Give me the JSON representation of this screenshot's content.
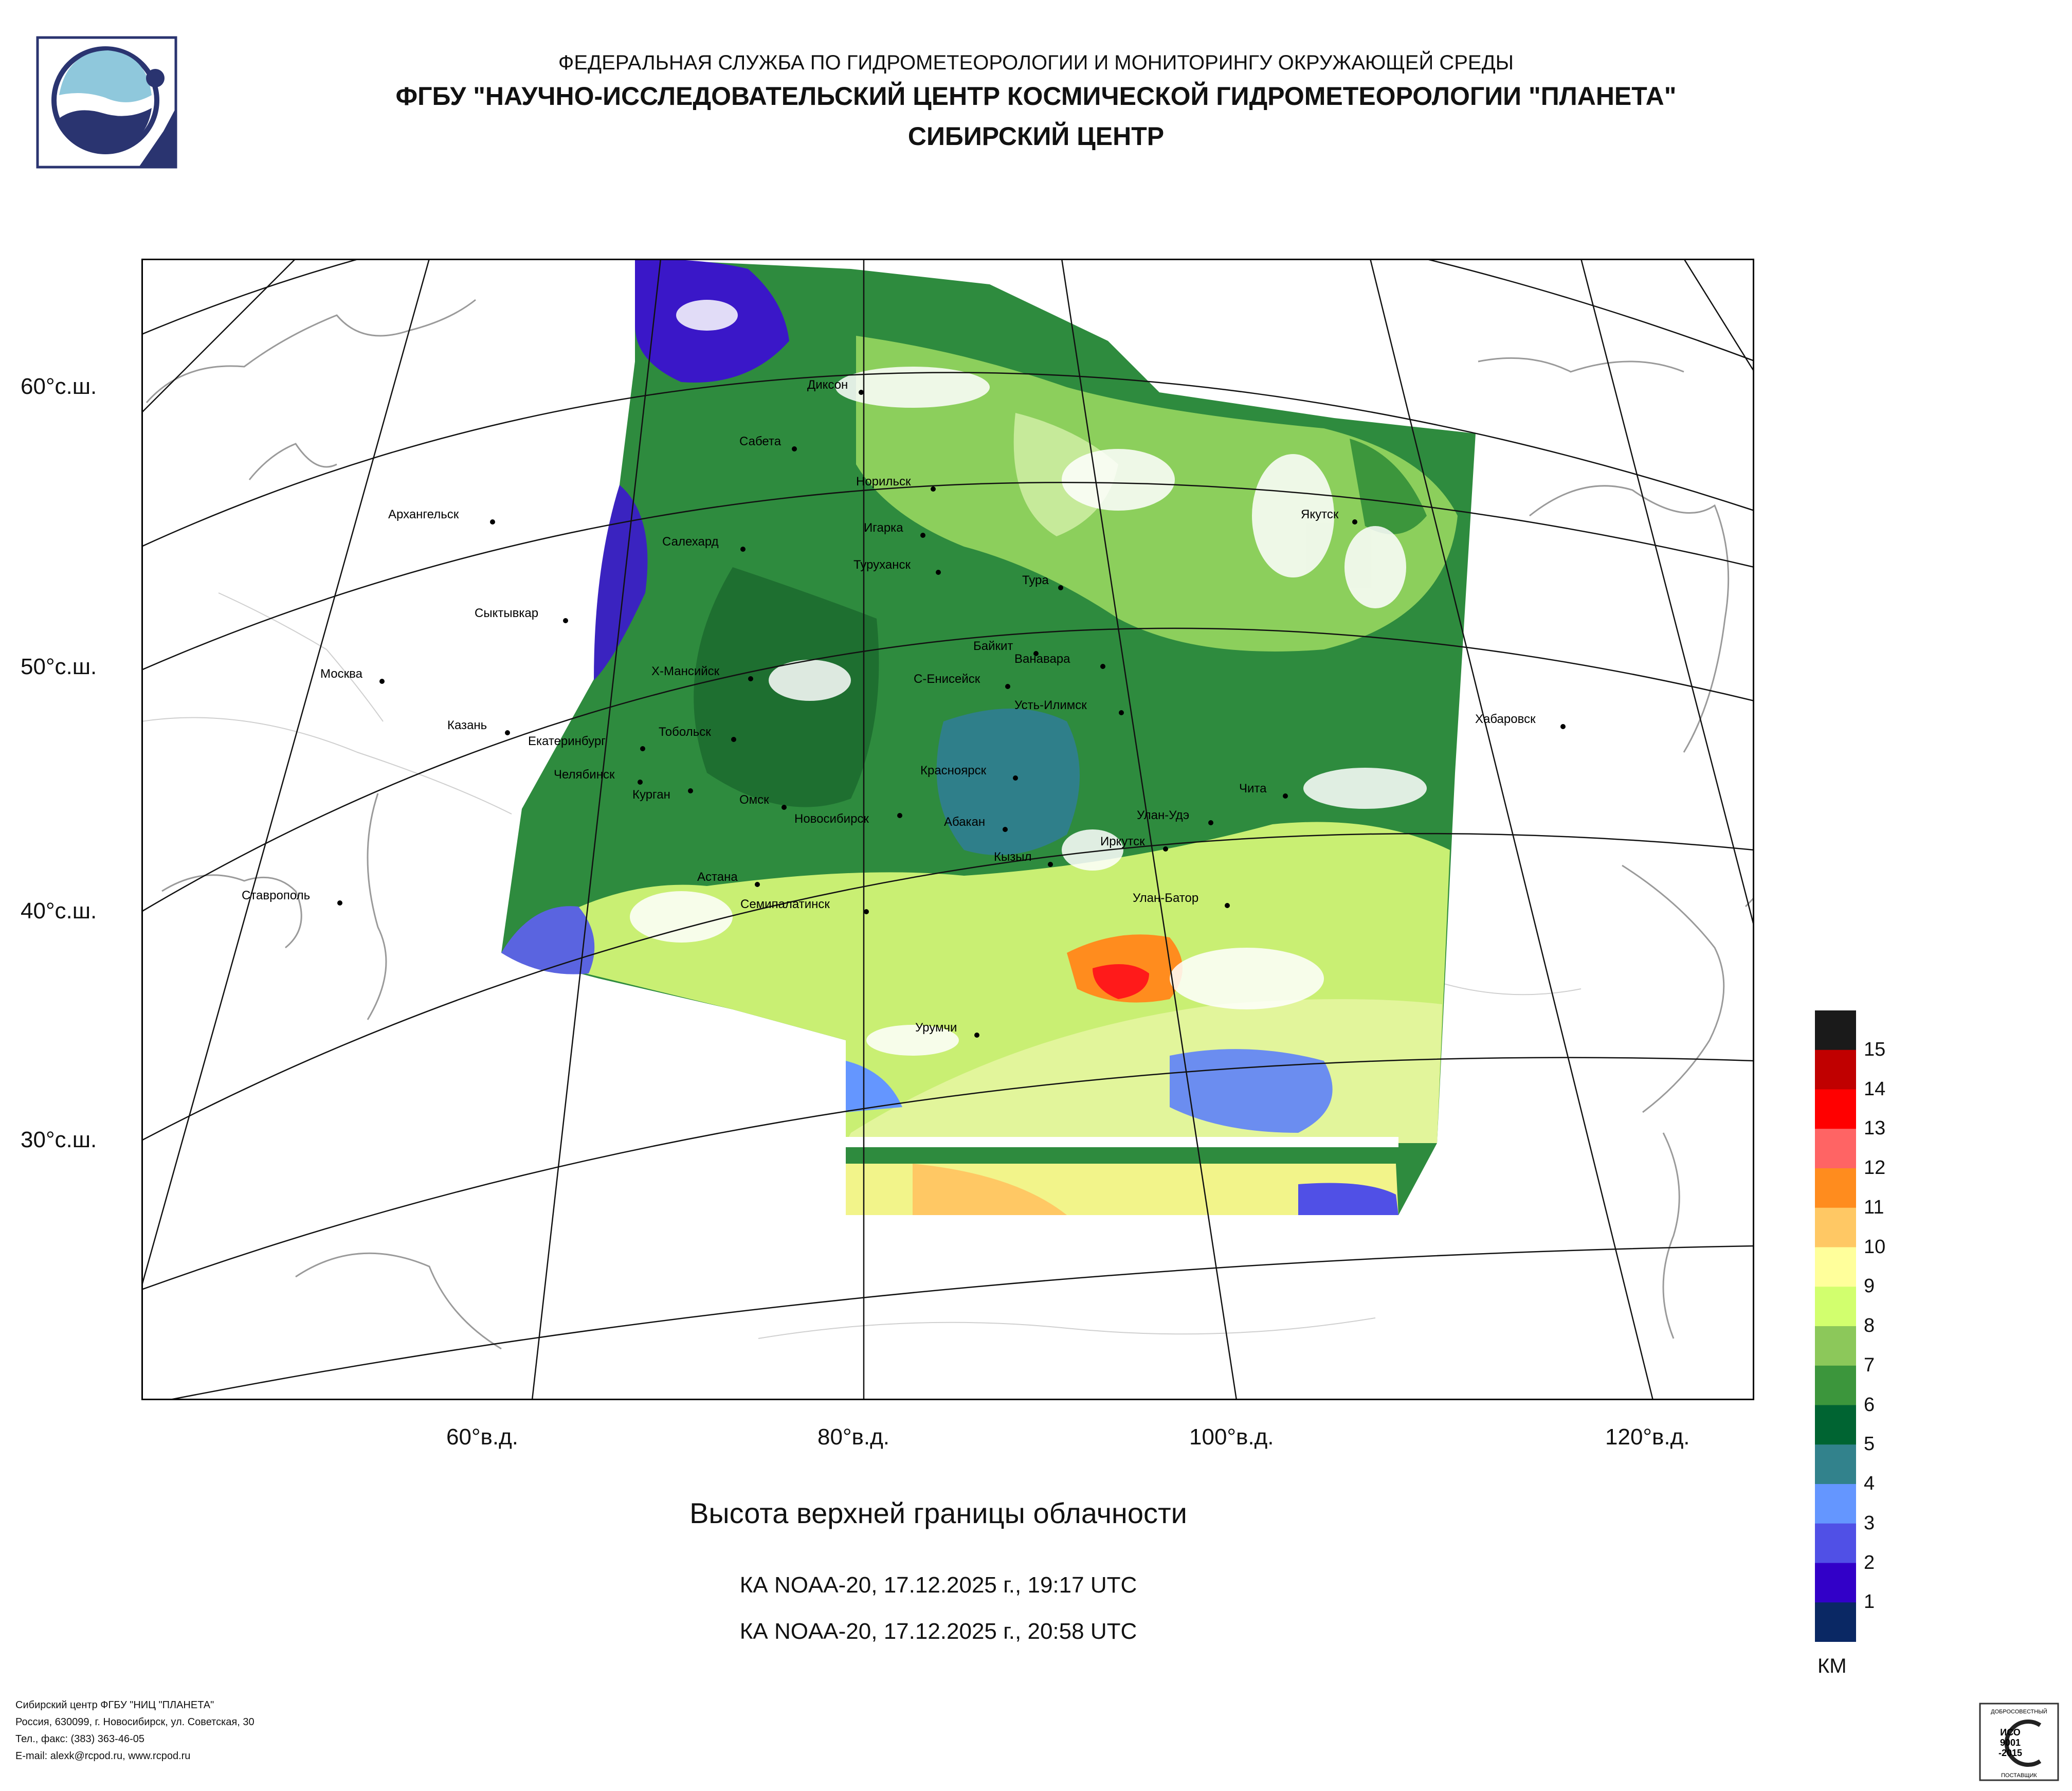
{
  "header": {
    "line1": "ФЕДЕРАЛЬНАЯ СЛУЖБА ПО ГИДРОМЕТЕОРОЛОГИИ И МОНИТОРИНГУ ОКРУЖАЮЩЕЙ СРЕДЫ",
    "line2": "ФГБУ \"НАУЧНО-ИССЛЕДОВАТЕЛЬСКИЙ ЦЕНТР КОСМИЧЕСКОЙ ГИДРОМЕТЕОРОЛОГИИ \"ПЛАНЕТА\"",
    "line3": "СИБИРСКИЙ ЦЕНТР"
  },
  "axes": {
    "lat": [
      "60°с.ш.",
      "50°с.ш.",
      "40°с.ш.",
      "30°с.ш."
    ],
    "lon": [
      "60°в.д.",
      "80°в.д.",
      "100°в.д.",
      "120°в.д."
    ]
  },
  "cities": {
    "arkhangelsk": "Архангельск",
    "syktyvkar": "Сыктывкар",
    "moskva": "Москва",
    "kazan": "Казань",
    "stavropol": "Ставрополь",
    "dikson": "Диксон",
    "sabeta": "Сабета",
    "norilsk": "Норильск",
    "salekhard": "Салехард",
    "igarka": "Игарка",
    "turukhansk": "Туруханск",
    "tura": "Тура",
    "yakutsk": "Якутск",
    "baykit": "Байкит",
    "vanavara": "Ванавара",
    "khmansiysk": "Х-Мансийск",
    "seniseysk": "С-Енисейск",
    "ustilimsk": "Усть-Илимск",
    "tobolsk": "Тобольск",
    "ekaterinburg": "Екатеринбург",
    "chelyabinsk": "Челябинск",
    "kurgan": "Курган",
    "omsk": "Омск",
    "novosibirsk": "Новосибирск",
    "krasnoyarsk": "Красноярск",
    "abakan": "Абакан",
    "kyzyl": "Кызыл",
    "irkutsk": "Иркутск",
    "ulanude": "Улан-Удэ",
    "chita": "Чита",
    "khabarovsk": "Хабаровск",
    "astana": "Астана",
    "semipalatinsk": "Семипалатинск",
    "ulanbator": "Улан-Батор",
    "urumchi": "Урумчи"
  },
  "title": "Высота верхней границы облачности",
  "passes": [
    "КА NOAA-20, 17.12.2025 г., 19:17 UTC",
    "КА NOAA-20, 17.12.2025 г., 20:58 UTC"
  ],
  "legend": {
    "unit": "КМ",
    "levels": [
      "15",
      "14",
      "13",
      "12",
      "11",
      "10",
      "9",
      "8",
      "7",
      "6",
      "5",
      "4",
      "3",
      "2",
      "1"
    ],
    "colors": [
      "#1a1a1a",
      "#c00000",
      "#ff0000",
      "#ff6464",
      "#ff8c1e",
      "#ffc864",
      "#ffff9b",
      "#d2ff6e",
      "#8cc85a",
      "#3c963c",
      "#006432",
      "#32828c",
      "#6496ff",
      "#5050e6",
      "#3200c8",
      "#0a2864"
    ]
  },
  "footer": [
    "Сибирский центр ФГБУ \"НИЦ \"ПЛАНЕТА\"",
    "Россия, 630099, г. Новосибирск, ул. Советская, 30",
    "Тел., факс: (383) 363-46-05",
    "E-mail: alexk@rcpod.ru, www.rcpod.ru"
  ],
  "cert": {
    "top": "ДОБРОСОВЕСТНЫЙ",
    "mid1": "ИСО",
    "mid2": "9001",
    "mid3": "-2015",
    "bottom": "ПОСТАВЩИК"
  }
}
